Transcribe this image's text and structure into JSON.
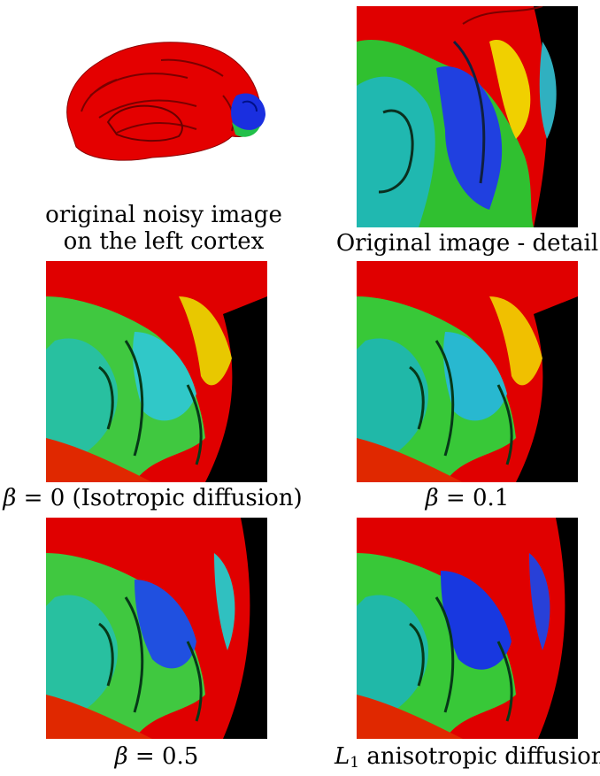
{
  "figure": {
    "panels": [
      {
        "id": "original-brain",
        "caption_lines": [
          "original noisy image",
          "on the left cortex"
        ]
      },
      {
        "id": "original-detail",
        "caption_lines": [
          "Original image - detail"
        ]
      },
      {
        "id": "beta-0",
        "caption_symbol": "β",
        "caption_value": " = 0 (Isotropic diffusion)"
      },
      {
        "id": "beta-01",
        "caption_symbol": "β",
        "caption_value": " = 0.1"
      },
      {
        "id": "beta-05",
        "caption_symbol": "β",
        "caption_value": " = 0.5"
      },
      {
        "id": "l1",
        "caption_symbol": "L",
        "caption_subscript": "1",
        "caption_value": " anisotropic diffusion"
      }
    ],
    "colormap": [
      "#e00000",
      "#f0d000",
      "#30d020",
      "#20c0b0",
      "#2040e0"
    ]
  }
}
